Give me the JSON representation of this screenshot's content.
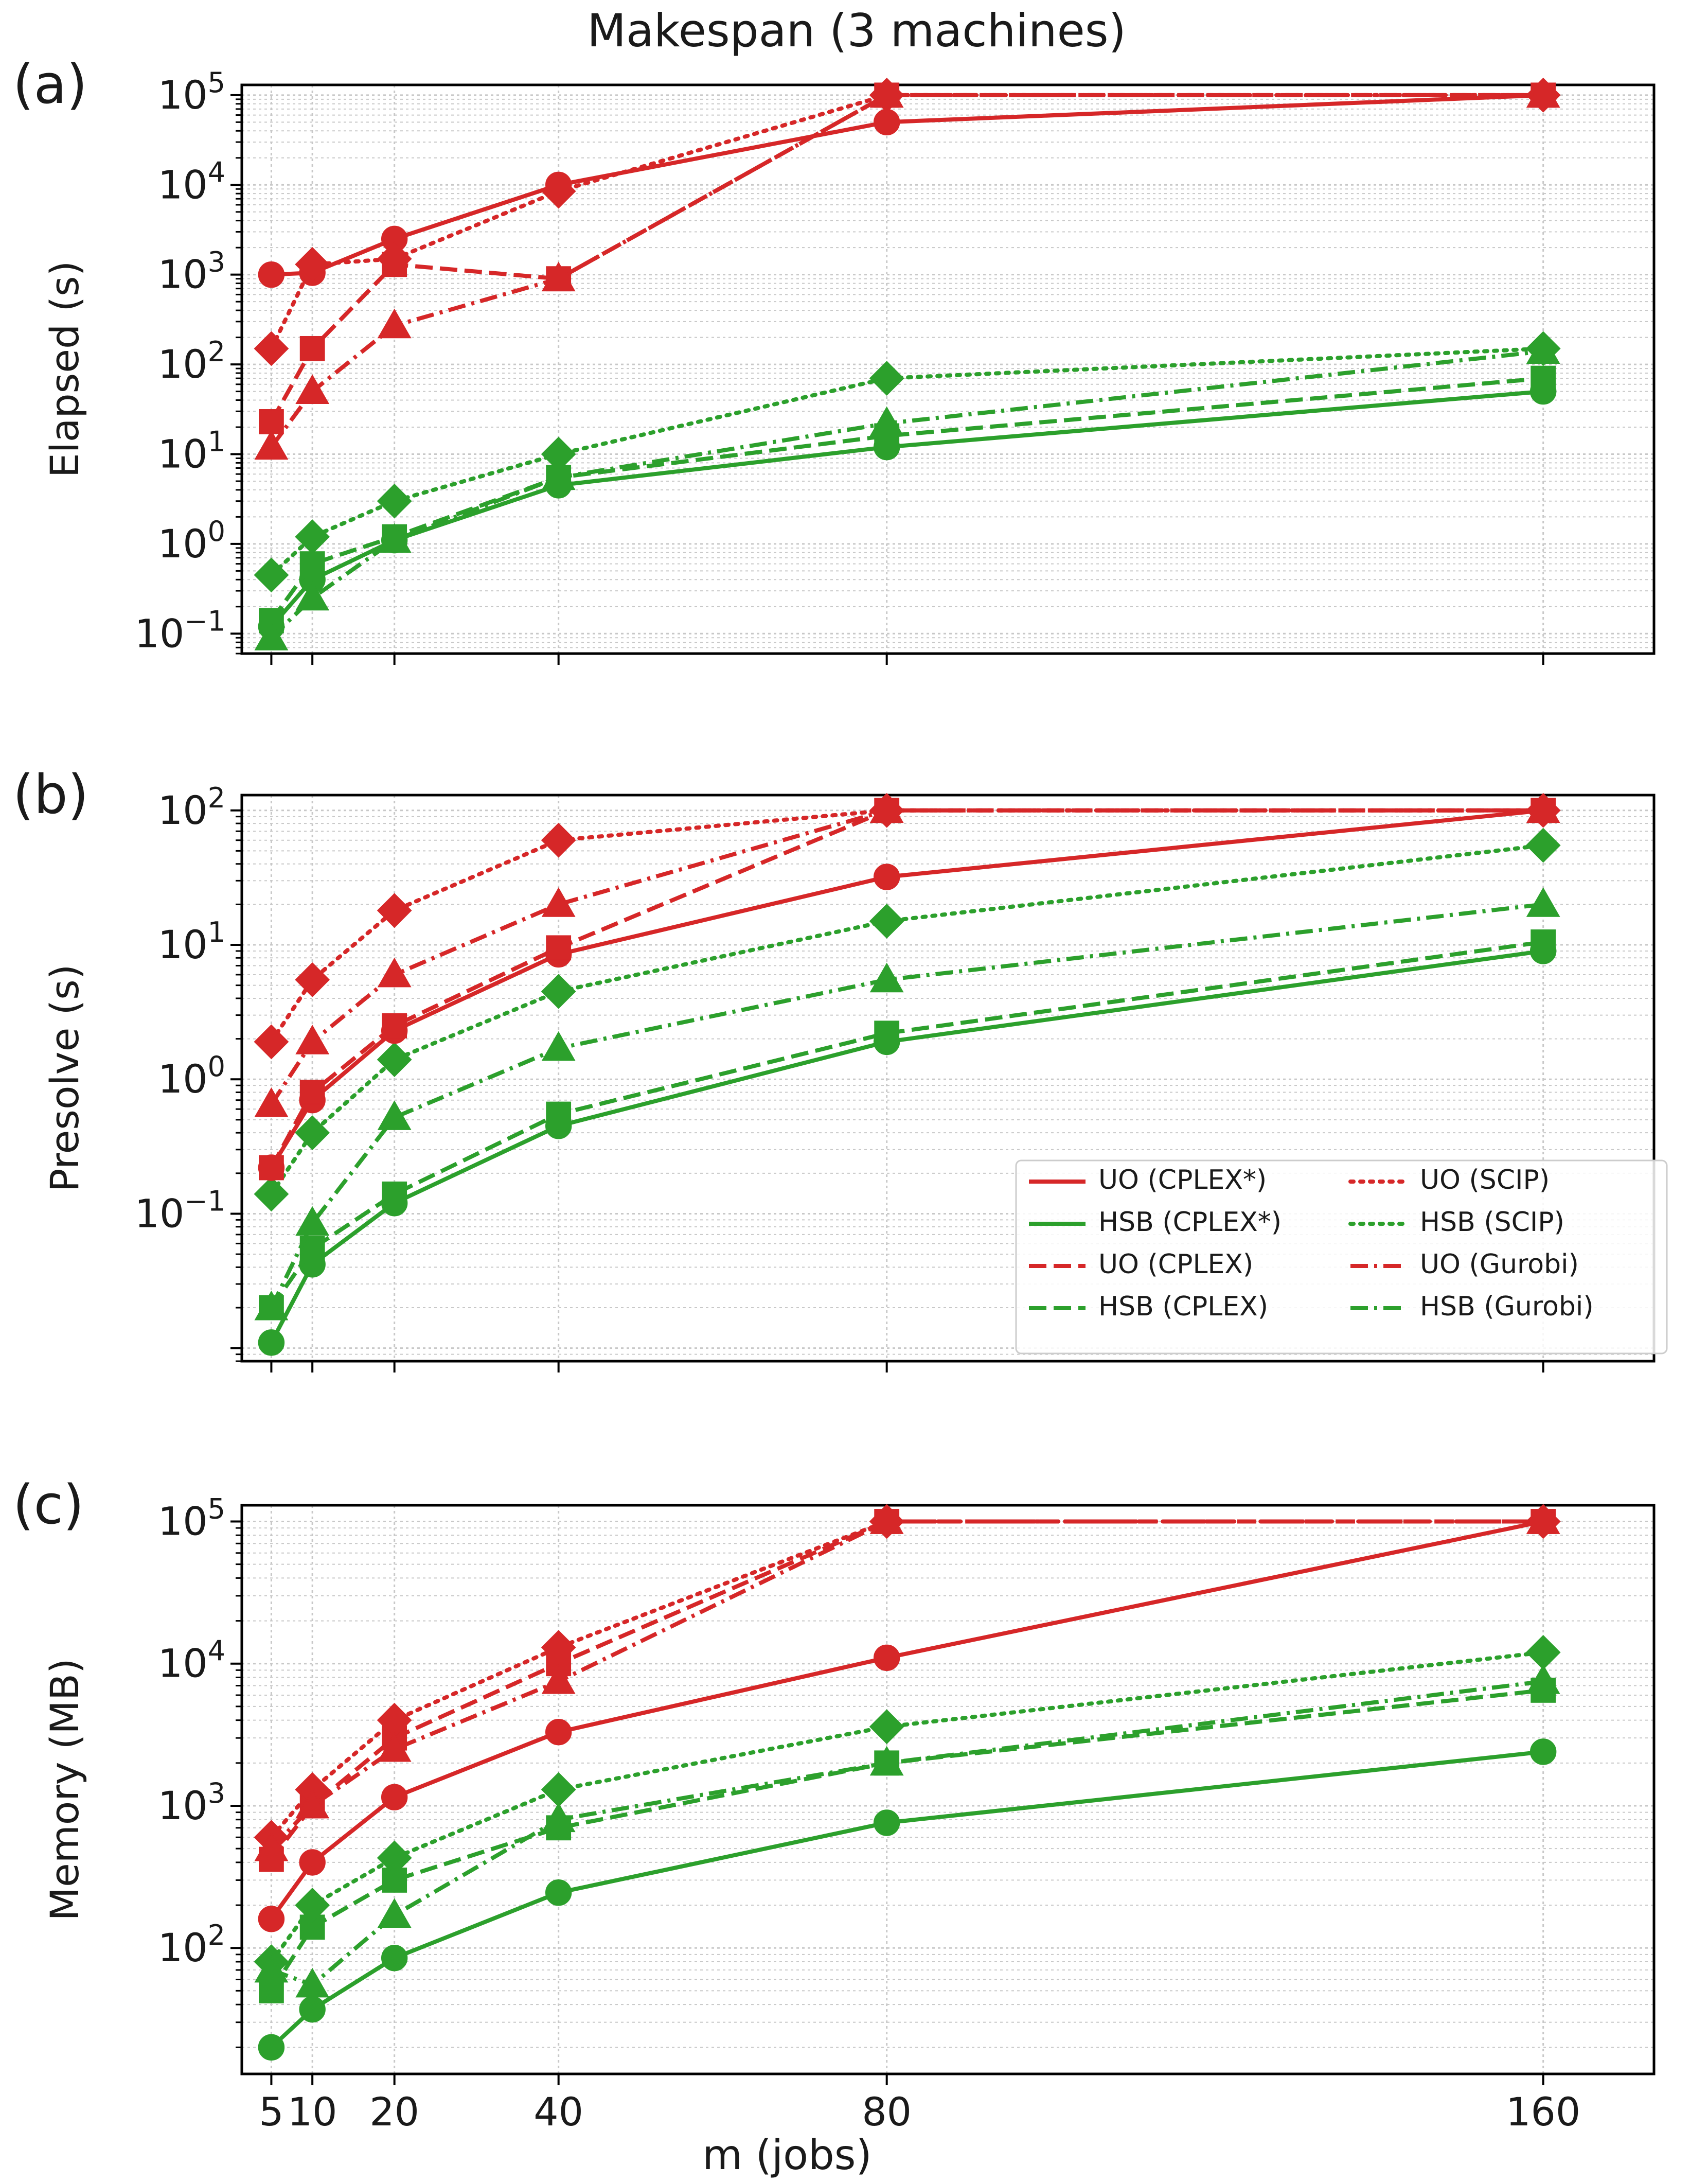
{
  "chart_data": {
    "title": "Makespan (3 machines)",
    "xlabel": "m (jobs)",
    "x": [
      5,
      10,
      20,
      40,
      80,
      160
    ],
    "x_tick_labels": [
      "5",
      "10",
      "20",
      "40",
      "80",
      "160"
    ],
    "legend_location": "lower-right of panel (b)",
    "legend": [
      {
        "label": "UO (CPLEX*)",
        "color": "#d62728",
        "dash": "solid",
        "marker": "circle"
      },
      {
        "label": "HSB (CPLEX*)",
        "color": "#2ca02c",
        "dash": "solid",
        "marker": "circle"
      },
      {
        "label": "UO (CPLEX)",
        "color": "#d62728",
        "dash": "dashed",
        "marker": "square"
      },
      {
        "label": "HSB (CPLEX)",
        "color": "#2ca02c",
        "dash": "dashed",
        "marker": "square"
      },
      {
        "label": "UO (SCIP)",
        "color": "#d62728",
        "dash": "dotted",
        "marker": "diamond"
      },
      {
        "label": "HSB (SCIP)",
        "color": "#2ca02c",
        "dash": "dotted",
        "marker": "diamond"
      },
      {
        "label": "UO (Gurobi)",
        "color": "#d62728",
        "dash": "dashdot",
        "marker": "triangle"
      },
      {
        "label": "HSB (Gurobi)",
        "color": "#2ca02c",
        "dash": "dashdot",
        "marker": "triangle"
      }
    ],
    "panels": [
      {
        "label": "(a)",
        "ylabel": "Elapsed (s)",
        "type": "line",
        "yscale": "log",
        "ylim": [
          0.06,
          130000
        ],
        "y_ticks": [
          {
            "exp": -1,
            "base": "10",
            "sup": "−1"
          },
          {
            "exp": 0,
            "base": "10",
            "sup": "0"
          },
          {
            "exp": 1,
            "base": "10",
            "sup": "1"
          },
          {
            "exp": 2,
            "base": "10",
            "sup": "2"
          },
          {
            "exp": 3,
            "base": "10",
            "sup": "3"
          },
          {
            "exp": 4,
            "base": "10",
            "sup": "4"
          },
          {
            "exp": 5,
            "base": "10",
            "sup": "5"
          }
        ],
        "series": [
          {
            "name": "UO (CPLEX*)",
            "values": [
              1000,
              1050,
              2500,
              10000,
              50000,
              100000
            ]
          },
          {
            "name": "HSB (CPLEX*)",
            "values": [
              0.12,
              0.4,
              1.1,
              4.5,
              12,
              50
            ]
          },
          {
            "name": "UO (CPLEX)",
            "values": [
              23,
              150,
              1300,
              900,
              100000,
              100000
            ]
          },
          {
            "name": "HSB (CPLEX)",
            "values": [
              0.14,
              0.6,
              1.2,
              5.5,
              16,
              70
            ]
          },
          {
            "name": "UO (SCIP)",
            "values": [
              150,
              1300,
              1500,
              8500,
              100000,
              100000
            ]
          },
          {
            "name": "HSB (SCIP)",
            "values": [
              0.45,
              1.2,
              3,
              10,
              70,
              150
            ]
          },
          {
            "name": "UO (Gurobi)",
            "values": [
              12,
              50,
              270,
              900,
              100000,
              100000
            ]
          },
          {
            "name": "HSB (Gurobi)",
            "values": [
              0.09,
              0.25,
              1.1,
              5.5,
              22,
              140
            ]
          }
        ]
      },
      {
        "label": "(b)",
        "ylabel": "Presolve (s)",
        "type": "line",
        "yscale": "log",
        "ylim": [
          0.008,
          130
        ],
        "y_ticks": [
          {
            "exp": -1,
            "base": "10",
            "sup": "−1"
          },
          {
            "exp": 0,
            "base": "10",
            "sup": "0"
          },
          {
            "exp": 1,
            "base": "10",
            "sup": "1"
          },
          {
            "exp": 2,
            "base": "10",
            "sup": "2"
          }
        ],
        "series": [
          {
            "name": "UO (CPLEX*)",
            "values": [
              0.22,
              0.7,
              2.3,
              8.5,
              32,
              100
            ]
          },
          {
            "name": "HSB (CPLEX*)",
            "values": [
              0.011,
              0.042,
              0.12,
              0.45,
              1.9,
              9
            ]
          },
          {
            "name": "UO (CPLEX)",
            "values": [
              0.22,
              0.8,
              2.5,
              9.5,
              100,
              100
            ]
          },
          {
            "name": "HSB (CPLEX)",
            "values": [
              0.02,
              0.055,
              0.14,
              0.55,
              2.2,
              10.5
            ]
          },
          {
            "name": "UO (SCIP)",
            "values": [
              1.9,
              5.5,
              18,
              60,
              100,
              100
            ]
          },
          {
            "name": "HSB (SCIP)",
            "values": [
              0.14,
              0.4,
              1.4,
              4.5,
              15,
              55
            ]
          },
          {
            "name": "UO (Gurobi)",
            "values": [
              0.65,
              1.9,
              6,
              20,
              100,
              100
            ]
          },
          {
            "name": "HSB (Gurobi)",
            "values": [
              0.02,
              0.085,
              0.52,
              1.7,
              5.5,
              20
            ]
          }
        ]
      },
      {
        "label": "(c)",
        "ylabel": "Memory (MB)",
        "type": "line",
        "yscale": "log",
        "ylim": [
          13,
          130000
        ],
        "y_ticks": [
          {
            "exp": 2,
            "base": "10",
            "sup": "2"
          },
          {
            "exp": 3,
            "base": "10",
            "sup": "3"
          },
          {
            "exp": 4,
            "base": "10",
            "sup": "4"
          },
          {
            "exp": 5,
            "base": "10",
            "sup": "5"
          }
        ],
        "series": [
          {
            "name": "UO (CPLEX*)",
            "values": [
              160,
              400,
              1150,
              3300,
              11000,
              100000
            ]
          },
          {
            "name": "HSB (CPLEX*)",
            "values": [
              20,
              37,
              85,
              245,
              760,
              2400
            ]
          },
          {
            "name": "UO (CPLEX)",
            "values": [
              420,
              1000,
              3000,
              10000,
              100000,
              100000
            ]
          },
          {
            "name": "HSB (CPLEX)",
            "values": [
              50,
              140,
              300,
              700,
              2000,
              6500
            ]
          },
          {
            "name": "UO (SCIP)",
            "values": [
              600,
              1300,
              4000,
              13000,
              100000,
              100000
            ]
          },
          {
            "name": "HSB (SCIP)",
            "values": [
              80,
              200,
              430,
              1300,
              3600,
              12000
            ]
          },
          {
            "name": "UO (Gurobi)",
            "values": [
              500,
              1000,
              2500,
              7500,
              100000,
              100000
            ]
          },
          {
            "name": "HSB (Gurobi)",
            "values": [
              70,
              55,
              170,
              800,
              2000,
              7500
            ]
          }
        ]
      }
    ]
  }
}
